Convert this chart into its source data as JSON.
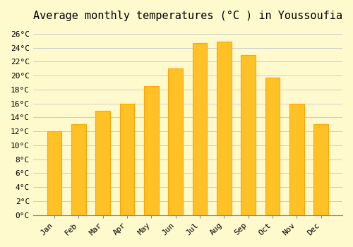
{
  "title": "Average monthly temperatures (°C ) in Youssoufia",
  "months": [
    "Jan",
    "Feb",
    "Mar",
    "Apr",
    "May",
    "Jun",
    "Jul",
    "Aug",
    "Sep",
    "Oct",
    "Nov",
    "Dec"
  ],
  "values": [
    12,
    13,
    15,
    16,
    18.5,
    21,
    24.7,
    24.9,
    23,
    19.7,
    16,
    13
  ],
  "bar_color": "#FFC125",
  "bar_edge_color": "#FFA500",
  "background_color": "#FFFACD",
  "grid_color": "#CCCCCC",
  "ylim": [
    0,
    27
  ],
  "yticks": [
    0,
    2,
    4,
    6,
    8,
    10,
    12,
    14,
    16,
    18,
    20,
    22,
    24,
    26
  ],
  "ytick_labels": [
    "0°C",
    "2°C",
    "4°C",
    "6°C",
    "8°C",
    "10°C",
    "12°C",
    "14°C",
    "16°C",
    "18°C",
    "20°C",
    "22°C",
    "24°C",
    "26°C"
  ],
  "title_fontsize": 11,
  "tick_fontsize": 8,
  "tick_font": "monospace"
}
